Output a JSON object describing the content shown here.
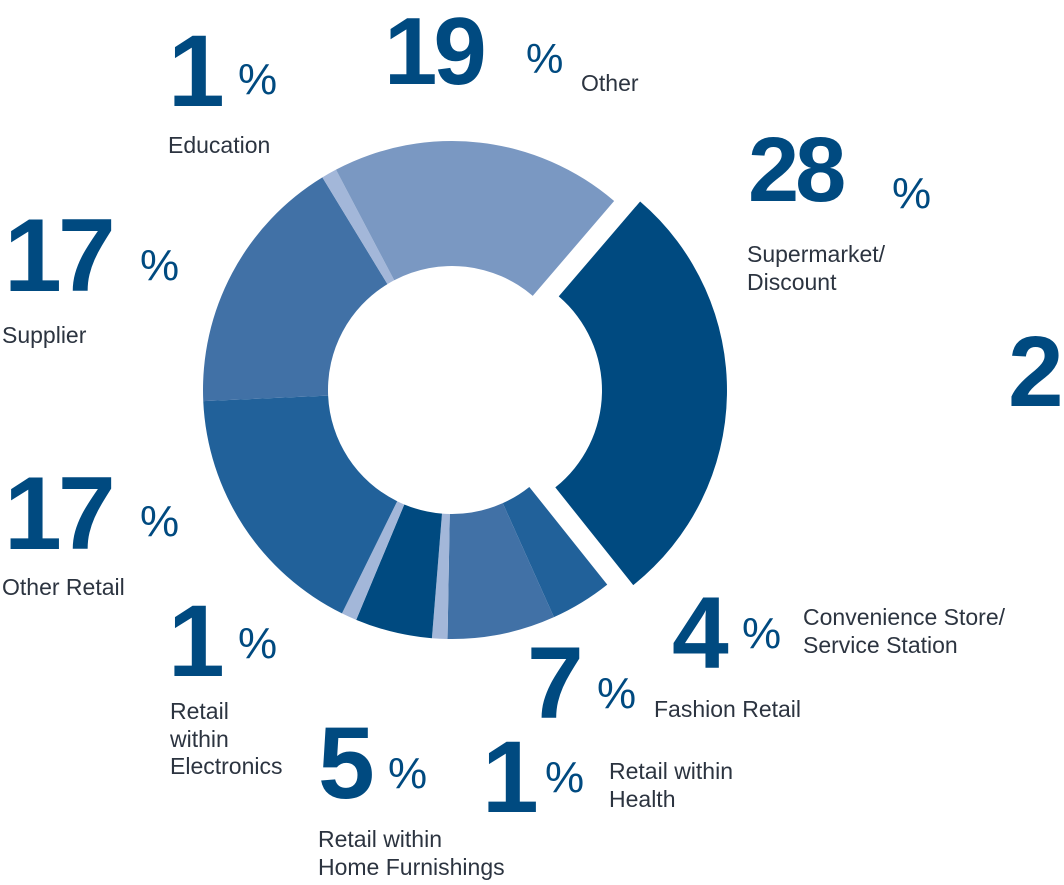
{
  "chart_data": {
    "type": "pie",
    "donut": true,
    "unit": "%",
    "slices": [
      {
        "label": "Supermarket/\nDiscount",
        "value": 28,
        "color": "#004a80",
        "exploded": true
      },
      {
        "label": "Convenience Store/\nService Station",
        "value": 4,
        "color": "#21619a"
      },
      {
        "label": "Fashion Retail",
        "value": 7,
        "color": "#4171a6"
      },
      {
        "label": "Retail within\nHealth",
        "value": 1,
        "color": "#a3b7d9"
      },
      {
        "label": "Retail within\nHome Furnishings",
        "value": 5,
        "color": "#004a80"
      },
      {
        "label": "Retail\nwithin\nElectronics",
        "value": 1,
        "color": "#a3b7d9"
      },
      {
        "label": "Other Retail",
        "value": 17,
        "color": "#21619a"
      },
      {
        "label": "Supplier",
        "value": 17,
        "color": "#4171a6"
      },
      {
        "label": "Education",
        "value": 1,
        "color": "#a3b7d9"
      },
      {
        "label": "Other",
        "value": 19,
        "color": "#7a98c2"
      }
    ]
  },
  "offpage_fragment": "2"
}
